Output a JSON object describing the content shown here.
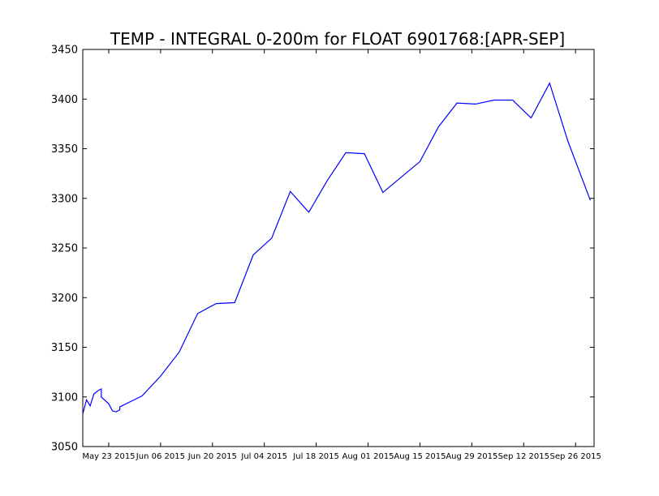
{
  "chart_data": {
    "type": "line",
    "title": "TEMP - INTEGRAL 0-200m for FLOAT 6901768:[APR-SEP]",
    "xlabel": "",
    "ylabel": "",
    "ylim": [
      3050,
      3450
    ],
    "xlim": [
      "2015-05-16",
      "2015-10-01"
    ],
    "grid": false,
    "y_ticks": [
      3050,
      3100,
      3150,
      3200,
      3250,
      3300,
      3350,
      3400,
      3450
    ],
    "x_ticks": [
      {
        "date": "2015-05-23",
        "label": "May 23 2015"
      },
      {
        "date": "2015-06-06",
        "label": "Jun 06 2015"
      },
      {
        "date": "2015-06-20",
        "label": "Jun 20 2015"
      },
      {
        "date": "2015-07-04",
        "label": "Jul 04 2015"
      },
      {
        "date": "2015-07-18",
        "label": "Jul 18 2015"
      },
      {
        "date": "2015-08-01",
        "label": "Aug 01 2015"
      },
      {
        "date": "2015-08-15",
        "label": "Aug 15 2015"
      },
      {
        "date": "2015-08-29",
        "label": "Aug 29 2015"
      },
      {
        "date": "2015-09-12",
        "label": "Sep 12 2015"
      },
      {
        "date": "2015-09-26",
        "label": "Sep 26 2015"
      }
    ],
    "series": [
      {
        "color": "#0000ff",
        "points": [
          [
            "2015-05-16",
            3083
          ],
          [
            "2015-05-17",
            3097
          ],
          [
            "2015-05-18",
            3091
          ],
          [
            "2015-05-19",
            3103
          ],
          [
            "2015-05-20",
            3106
          ],
          [
            "2015-05-21",
            3108
          ],
          [
            "2015-05-21",
            3100
          ],
          [
            "2015-05-23",
            3093
          ],
          [
            "2015-05-24",
            3086
          ],
          [
            "2015-05-25",
            3085
          ],
          [
            "2015-05-26",
            3087
          ],
          [
            "2015-05-26",
            3090
          ],
          [
            "2015-06-01",
            3101
          ],
          [
            "2015-06-06",
            3121
          ],
          [
            "2015-06-11",
            3145
          ],
          [
            "2015-06-16",
            3184
          ],
          [
            "2015-06-21",
            3194
          ],
          [
            "2015-06-26",
            3195
          ],
          [
            "2015-07-01",
            3243
          ],
          [
            "2015-07-06",
            3260
          ],
          [
            "2015-07-11",
            3307
          ],
          [
            "2015-07-16",
            3286
          ],
          [
            "2015-07-21",
            3318
          ],
          [
            "2015-07-26",
            3346
          ],
          [
            "2015-07-31",
            3345
          ],
          [
            "2015-08-05",
            3306
          ],
          [
            "2015-08-15",
            3337
          ],
          [
            "2015-08-20",
            3372
          ],
          [
            "2015-08-25",
            3396
          ],
          [
            "2015-08-30",
            3395
          ],
          [
            "2015-09-04",
            3399
          ],
          [
            "2015-09-09",
            3399
          ],
          [
            "2015-09-14",
            3381
          ],
          [
            "2015-09-19",
            3416
          ],
          [
            "2015-09-24",
            3357
          ],
          [
            "2015-09-30",
            3298
          ]
        ]
      }
    ]
  }
}
